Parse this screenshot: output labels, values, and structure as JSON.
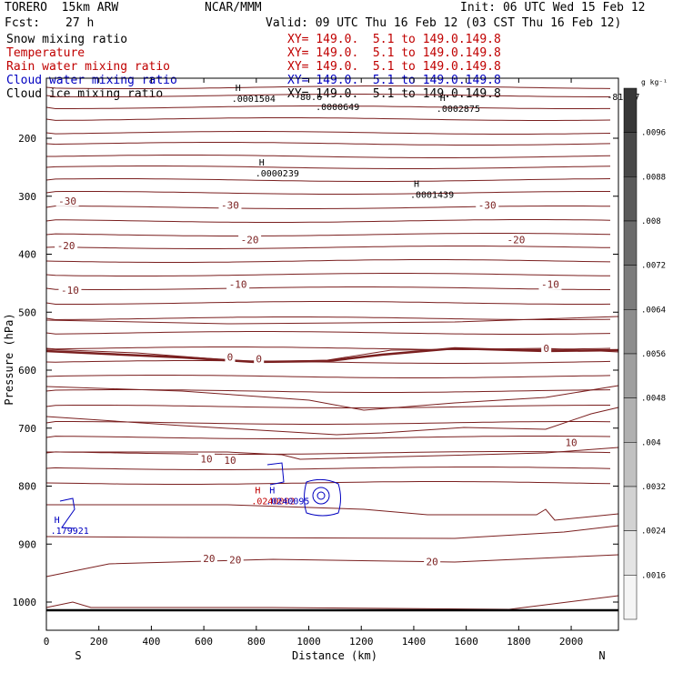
{
  "header": {
    "model": "TORERO  15km ARW",
    "center": "NCAR/MMM",
    "init": "Init: 06 UTC Wed 15 Feb 12",
    "fcst_label": "Fcst:",
    "fcst_value": "27 h",
    "valid": "Valid: 09 UTC Thu 16 Feb 12 (03 CST Thu 16 Feb 12)"
  },
  "variables": [
    {
      "name": "Snow mixing ratio",
      "xy": "XY= 149.0.  5.1 to 149.0.149.8",
      "color": "#000000"
    },
    {
      "name": "Temperature",
      "xy": "XY= 149.0.  5.1 to 149.0.149.8",
      "color": "#c00000"
    },
    {
      "name": "Rain water mixing ratio",
      "xy": "XY= 149.0.  5.1 to 149.0.149.8",
      "color": "#c00000"
    },
    {
      "name": "Cloud water mixing ratio",
      "xy": "XY= 149.0.  5.1 to 149.0.149.8",
      "color": "#0000c0"
    },
    {
      "name": "Cloud ice mixing ratio",
      "xy": "XY= 149.0.  5.1 to 149.0.149.8",
      "color": "#000000"
    }
  ],
  "chart_data": {
    "type": "cross-section contour",
    "xlabel": "Distance (km)",
    "ylabel": "Pressure (hPa)",
    "xlim": [
      0,
      2180
    ],
    "ylim": [
      1050,
      100
    ],
    "x_ticks": [
      0,
      200,
      400,
      600,
      800,
      1000,
      1200,
      1400,
      1600,
      1800,
      2000
    ],
    "y_ticks": [
      200,
      300,
      400,
      500,
      600,
      700,
      800,
      900,
      1000
    ],
    "end_labels": {
      "left": "S",
      "right": "N"
    },
    "temperature_contour_labels": [
      {
        "text": "-30",
        "x": 80,
        "p": 308
      },
      {
        "text": "-30",
        "x": 700,
        "p": 315
      },
      {
        "text": "-30",
        "x": 1680,
        "p": 315
      },
      {
        "text": "-20",
        "x": 75,
        "p": 385
      },
      {
        "text": "-20",
        "x": 775,
        "p": 375
      },
      {
        "text": "-20",
        "x": 1790,
        "p": 375
      },
      {
        "text": "-10",
        "x": 90,
        "p": 462
      },
      {
        "text": "-10",
        "x": 730,
        "p": 452
      },
      {
        "text": "-10",
        "x": 1920,
        "p": 452
      },
      {
        "text": "0",
        "x": 700,
        "p": 577
      },
      {
        "text": "0",
        "x": 810,
        "p": 580
      },
      {
        "text": "0",
        "x": 1905,
        "p": 562
      },
      {
        "text": "10",
        "x": 610,
        "p": 753
      },
      {
        "text": "10",
        "x": 700,
        "p": 755
      },
      {
        "text": "10",
        "x": 2000,
        "p": 725
      },
      {
        "text": "20",
        "x": 620,
        "p": 925
      },
      {
        "text": "20",
        "x": 720,
        "p": 927
      },
      {
        "text": "20",
        "x": 1470,
        "p": 930
      }
    ],
    "extrema_labels": [
      {
        "mark": "H",
        "value": ".0001504",
        "x": 720,
        "p": 123,
        "color": "#000000"
      },
      {
        "mark": "",
        "value": "-80.6",
        "x": 960,
        "p": 120,
        "color": "#000000"
      },
      {
        "mark": "",
        "value": ".0000649",
        "x": 1040,
        "p": 137,
        "color": "#000000"
      },
      {
        "mark": "H",
        "value": ".0002875",
        "x": 1500,
        "p": 140,
        "color": "#000000"
      },
      {
        "mark": "",
        "value": "-81.27",
        "x": 2150,
        "p": 120,
        "color": "#000000"
      },
      {
        "mark": "H",
        "value": ".0000239",
        "x": 810,
        "p": 252,
        "color": "#000000"
      },
      {
        "mark": "H",
        "value": ".0001439",
        "x": 1400,
        "p": 289,
        "color": "#000000"
      },
      {
        "mark": "H",
        "value": ".0240002",
        "x": 795,
        "p": 817,
        "color": "#c00000"
      },
      {
        "mark": "H",
        "value": ".0240095",
        "x": 850,
        "p": 817,
        "color": "#0000c0"
      },
      {
        "mark": "H",
        "value": ".179921",
        "x": 30,
        "p": 868,
        "color": "#0000c0"
      }
    ],
    "colorbar": {
      "unit_label": "g kg⁻¹",
      "levels": [
        ".0096",
        ".0088",
        ".008",
        ".0072",
        ".0064",
        ".0056",
        ".0048",
        ".004",
        ".0032",
        ".0024",
        ".0016"
      ]
    }
  }
}
